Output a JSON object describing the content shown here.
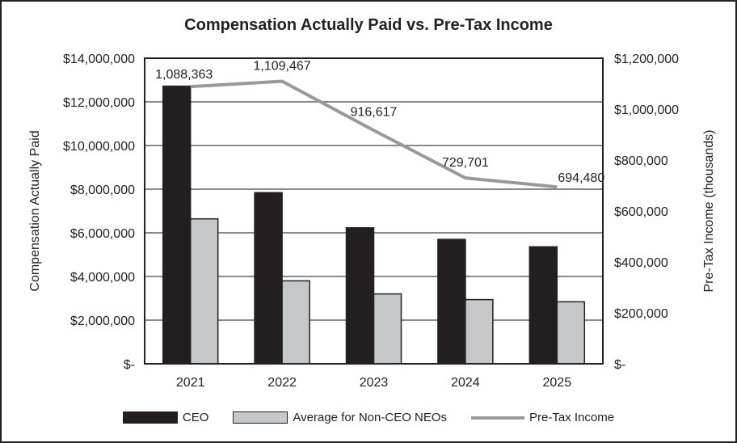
{
  "chart_data": {
    "type": "bar+line",
    "title": "Compensation Actually Paid vs. Pre-Tax Income",
    "categories": [
      "2021",
      "2022",
      "2023",
      "2024",
      "2025"
    ],
    "ylabel": "Compensation Actually Paid",
    "y2label": "Pre-Tax Income (thousands)",
    "ylim": [
      0,
      14000000
    ],
    "y2lim": [
      0,
      1200000
    ],
    "yticks": [
      "$-",
      "$2,000,000",
      "$4,000,000",
      "$6,000,000",
      "$8,000,000",
      "$10,000,000",
      "$12,000,000",
      "$14,000,000"
    ],
    "y2ticks": [
      "$-",
      "$200,000",
      "$400,000",
      "$600,000",
      "$800,000",
      "$1,000,000",
      "$1,200,000"
    ],
    "grid": true,
    "legend": "bottom",
    "series": [
      {
        "name": "CEO",
        "type": "bar",
        "axis": "left",
        "color": "#231f20",
        "values": [
          12720000,
          7840000,
          6230000,
          5700000,
          5360000
        ]
      },
      {
        "name": "Average for Non-CEO NEOs",
        "type": "bar",
        "axis": "left",
        "color": "#c6c7c9",
        "values": [
          6640000,
          3800000,
          3200000,
          2940000,
          2840000
        ]
      },
      {
        "name": "Pre-Tax Income",
        "type": "line",
        "axis": "right",
        "color": "#999999",
        "values": [
          1088363,
          1109467,
          916617,
          729701,
          694480
        ],
        "labels": [
          "1,088,363",
          "1,109,467",
          "916,617",
          "729,701",
          "694,480"
        ]
      }
    ]
  }
}
